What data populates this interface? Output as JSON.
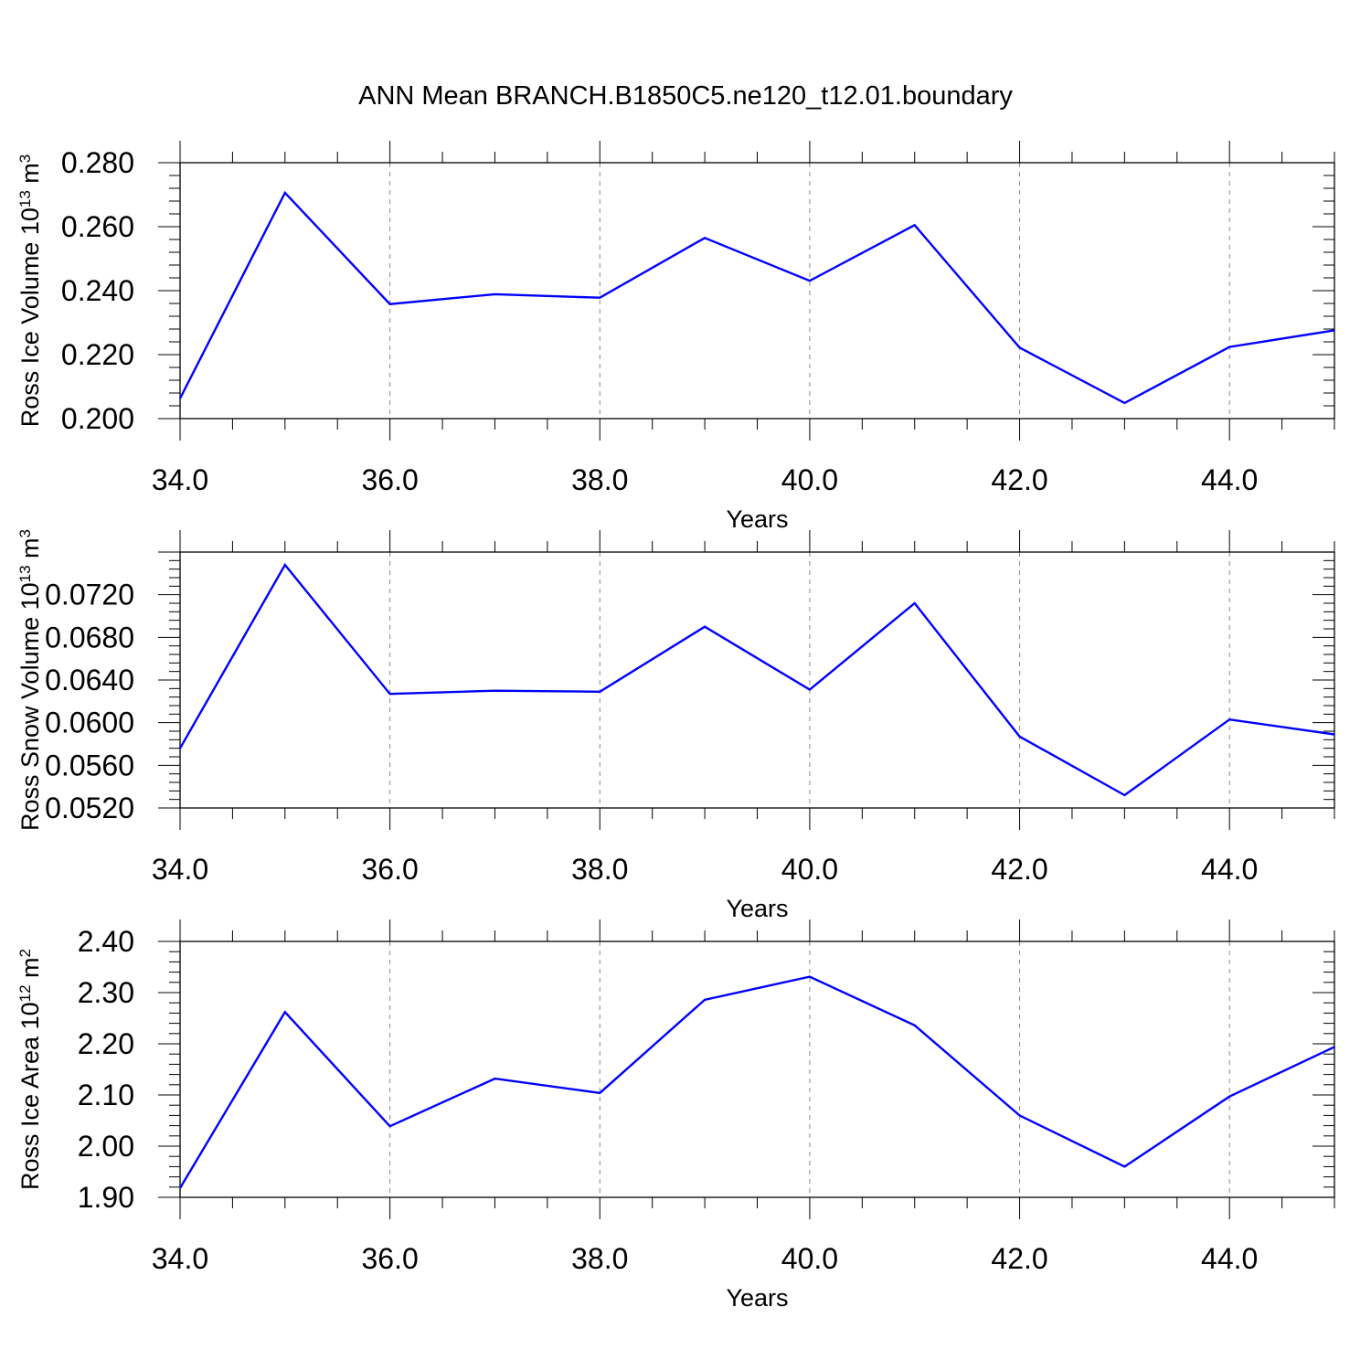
{
  "title": "ANN Mean BRANCH.B1850C5.ne120_t12.01.boundary",
  "colors": {
    "line": "#0000ff",
    "axis": "#000000",
    "grid": "#888888"
  },
  "chart_data": [
    {
      "type": "line",
      "title": "",
      "xlabel": "Years",
      "ylabel": "Ross Ice Volume 10",
      "ylabel_exp": "13",
      "ylabel_unit": " m",
      "ylabel_unit_exp": "3",
      "xlim": [
        34,
        45
      ],
      "ylim": [
        0.2,
        0.28
      ],
      "x_ticks": [
        34,
        36,
        38,
        40,
        42,
        44
      ],
      "x_tick_labels": [
        "34.0",
        "36.0",
        "38.0",
        "40.0",
        "42.0",
        "44.0"
      ],
      "y_ticks": [
        0.2,
        0.22,
        0.24,
        0.26,
        0.28
      ],
      "y_tick_labels": [
        "0.200",
        "0.220",
        "0.240",
        "0.260",
        "0.280"
      ],
      "grid": "vertical dashed at major x ticks",
      "x": [
        34,
        35,
        36,
        37,
        38,
        39,
        40,
        41,
        42,
        43,
        44,
        45
      ],
      "values": [
        0.2063,
        0.2706,
        0.2358,
        0.2389,
        0.2378,
        0.2565,
        0.2431,
        0.2605,
        0.2222,
        0.2049,
        0.2224,
        0.2276
      ]
    },
    {
      "type": "line",
      "title": "",
      "xlabel": "Years",
      "ylabel": "Ross Snow Volume 10",
      "ylabel_exp": "13",
      "ylabel_unit": " m",
      "ylabel_unit_exp": "3",
      "xlim": [
        34,
        45
      ],
      "ylim": [
        0.052,
        0.076
      ],
      "x_ticks": [
        34,
        36,
        38,
        40,
        42,
        44
      ],
      "x_tick_labels": [
        "34.0",
        "36.0",
        "38.0",
        "40.0",
        "42.0",
        "44.0"
      ],
      "y_ticks": [
        0.052,
        0.056,
        0.06,
        0.064,
        0.068,
        0.072
      ],
      "y_tick_labels": [
        "0.0520",
        "0.0560",
        "0.0600",
        "0.0640",
        "0.0680",
        "0.0720"
      ],
      "grid": "vertical dashed at major x ticks",
      "x": [
        34,
        35,
        36,
        37,
        38,
        39,
        40,
        41,
        42,
        43,
        44,
        45
      ],
      "values": [
        0.0576,
        0.0748,
        0.0627,
        0.063,
        0.0629,
        0.069,
        0.0631,
        0.0712,
        0.0587,
        0.0532,
        0.0603,
        0.0589
      ]
    },
    {
      "type": "line",
      "title": "",
      "xlabel": "Years",
      "ylabel": "Ross Ice Area 10",
      "ylabel_exp": "12",
      "ylabel_unit": " m",
      "ylabel_unit_exp": "2",
      "xlim": [
        34,
        45
      ],
      "ylim": [
        1.9,
        2.4
      ],
      "x_ticks": [
        34,
        36,
        38,
        40,
        42,
        44
      ],
      "x_tick_labels": [
        "34.0",
        "36.0",
        "38.0",
        "40.0",
        "42.0",
        "44.0"
      ],
      "y_ticks": [
        1.9,
        2.0,
        2.1,
        2.2,
        2.3,
        2.4
      ],
      "y_tick_labels": [
        "1.90",
        "2.00",
        "2.10",
        "2.20",
        "2.30",
        "2.40"
      ],
      "grid": "vertical dashed at major x ticks",
      "x": [
        34,
        35,
        36,
        37,
        38,
        39,
        40,
        41,
        42,
        43,
        44,
        45
      ],
      "values": [
        1.918,
        2.262,
        2.039,
        2.132,
        2.104,
        2.286,
        2.331,
        2.236,
        2.06,
        1.96,
        2.097,
        2.194
      ]
    }
  ]
}
